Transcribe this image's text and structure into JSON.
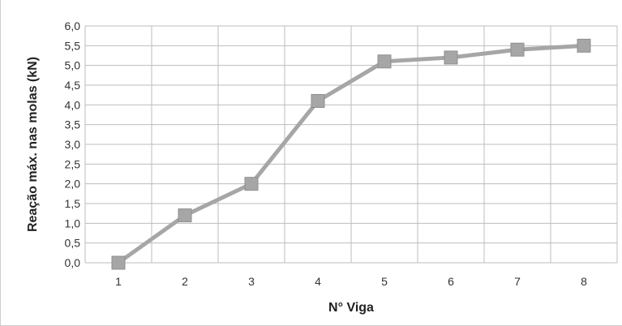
{
  "chart_data": {
    "type": "line",
    "title": "",
    "xlabel": "N° Viga",
    "ylabel": "Reação máx. nas molas  (kN)",
    "categories": [
      "1",
      "2",
      "3",
      "4",
      "5",
      "6",
      "7",
      "8"
    ],
    "series": [
      {
        "values": [
          0.0,
          1.2,
          2.0,
          4.1,
          5.1,
          5.2,
          5.4,
          5.5
        ]
      }
    ],
    "ylim": [
      0,
      6
    ],
    "yticks": [
      "0,0",
      "0,5",
      "1,0",
      "1,5",
      "2,0",
      "2,5",
      "3,0",
      "3,5",
      "4,0",
      "4,5",
      "5,0",
      "5,5",
      "6,0"
    ],
    "grid": true,
    "colors": {
      "line": "#a6a6a6",
      "marker": "#a6a6a6",
      "grid": "#bdbdbd"
    }
  }
}
